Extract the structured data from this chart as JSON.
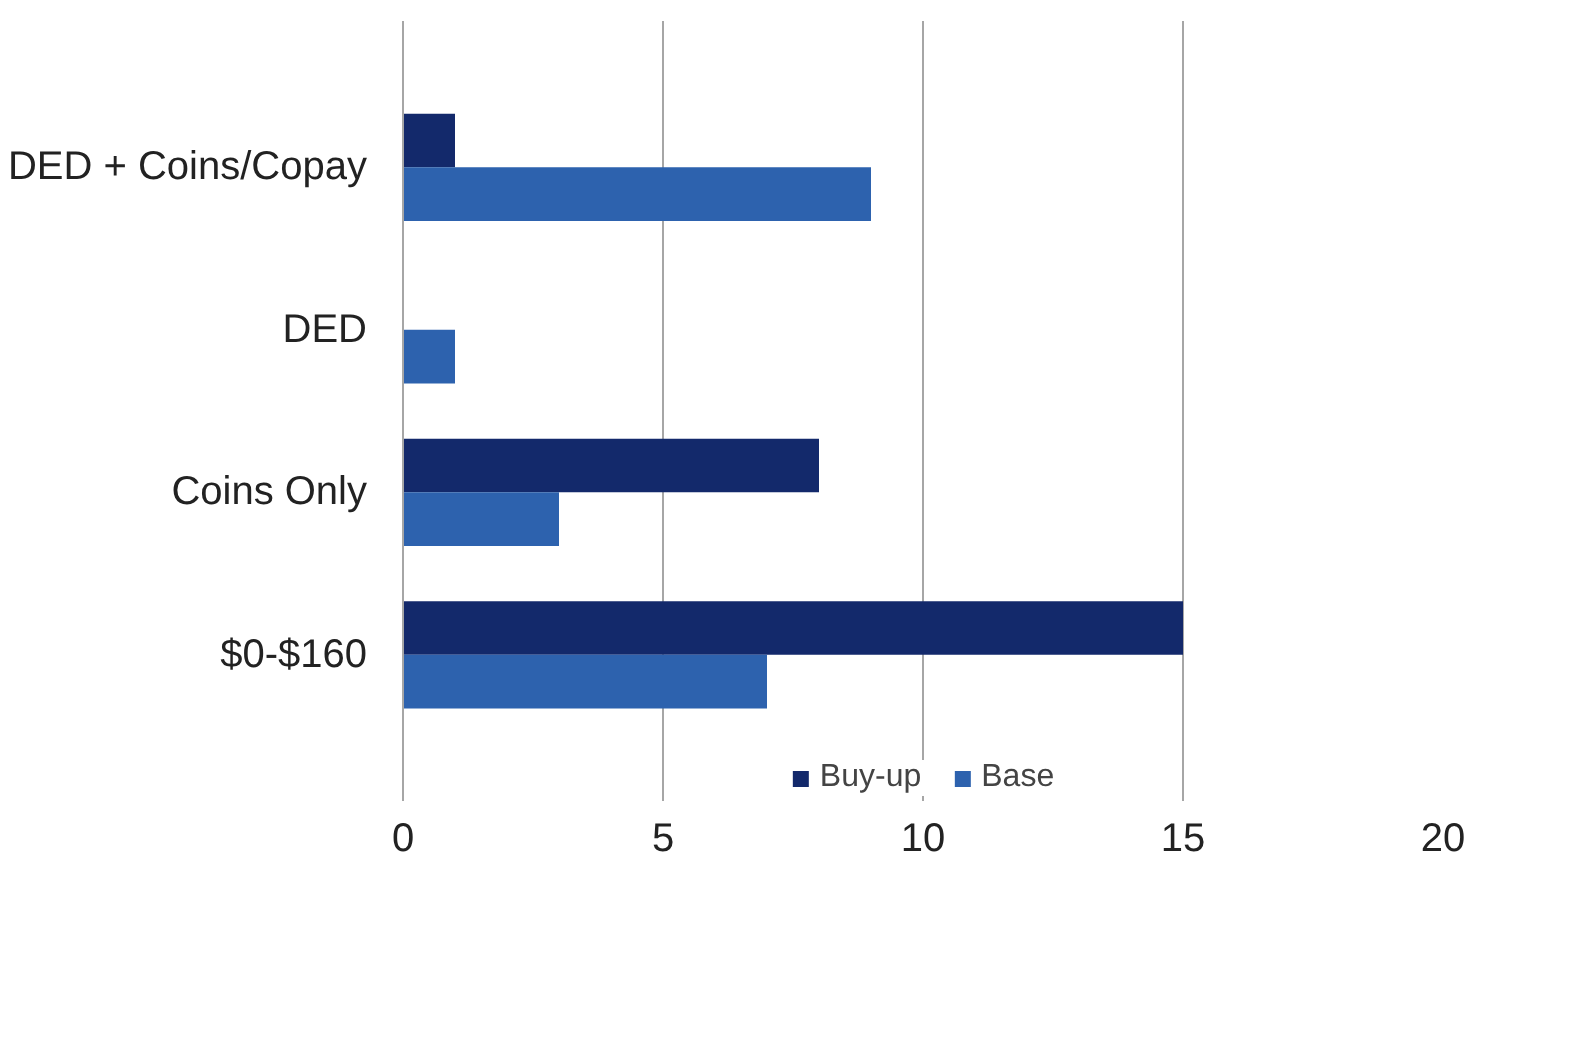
{
  "chart_data": {
    "type": "bar",
    "orientation": "horizontal",
    "categories": [
      "DED + Coins/Copay",
      "DED",
      "Coins Only",
      "$0-$160"
    ],
    "series": [
      {
        "name": "Buy-up",
        "color": "#13296b",
        "values": [
          1,
          0,
          8,
          15
        ]
      },
      {
        "name": "Base",
        "color": "#2d62ae",
        "values": [
          9,
          1,
          3,
          7
        ]
      }
    ],
    "xlim": [
      0,
      20
    ],
    "xticks": [
      0,
      5,
      10,
      15,
      20
    ],
    "grid": "x",
    "legend": "bottom"
  }
}
